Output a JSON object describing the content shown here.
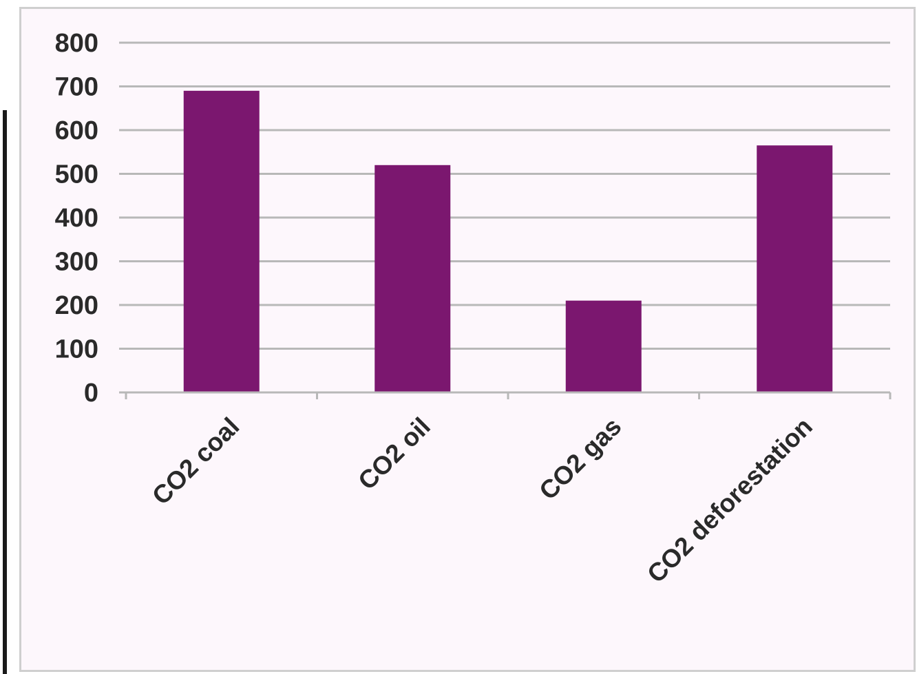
{
  "chart_data": {
    "type": "bar",
    "categories": [
      "CO2 coal",
      "CO2 oil",
      "CO2 gas",
      "CO2 deforestation"
    ],
    "values": [
      690,
      520,
      210,
      565
    ],
    "title": "",
    "xlabel": "",
    "ylabel": "",
    "ylim": [
      0,
      800
    ],
    "yticks": [
      "0",
      "100",
      "200",
      "300",
      "400",
      "500",
      "600",
      "700",
      "800"
    ],
    "grid": true,
    "legend": "none",
    "bar_color": "#7b176f",
    "grid_color": "#b8b8b8"
  }
}
